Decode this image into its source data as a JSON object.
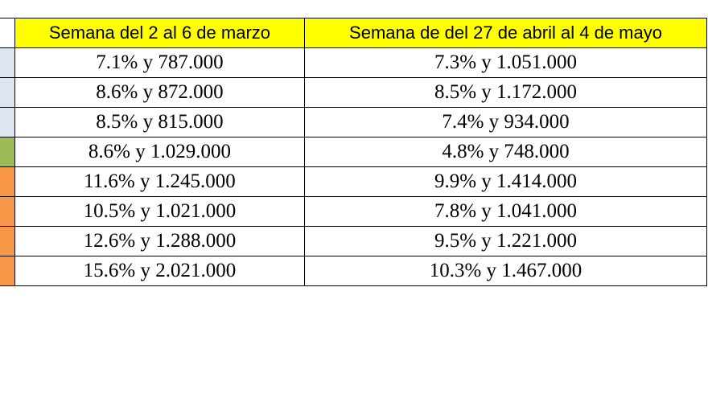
{
  "table": {
    "header": [
      "Semana del 2 al 6 de marzo",
      "Semana de del 27 de abril al 4 de mayo"
    ],
    "rows": [
      [
        "7.1% y 787.000",
        "7.3% y 1.051.000"
      ],
      [
        "8.6% y 872.000",
        "8.5% y 1.172.000"
      ],
      [
        "8.5% y 815.000",
        "7.4% y 934.000"
      ],
      [
        "8.6% y 1.029.000",
        "4.8% y 748.000"
      ],
      [
        "11.6% y 1.245.000",
        "9.9% y 1.414.000"
      ],
      [
        "10.5% y 1.021.000",
        "7.8% y 1.041.000"
      ],
      [
        "12.6% y 1.288.000",
        "9.5% y 1.221.000"
      ],
      [
        "15.6% y 2.021.000",
        "10.3% y 1.467.000"
      ]
    ]
  }
}
